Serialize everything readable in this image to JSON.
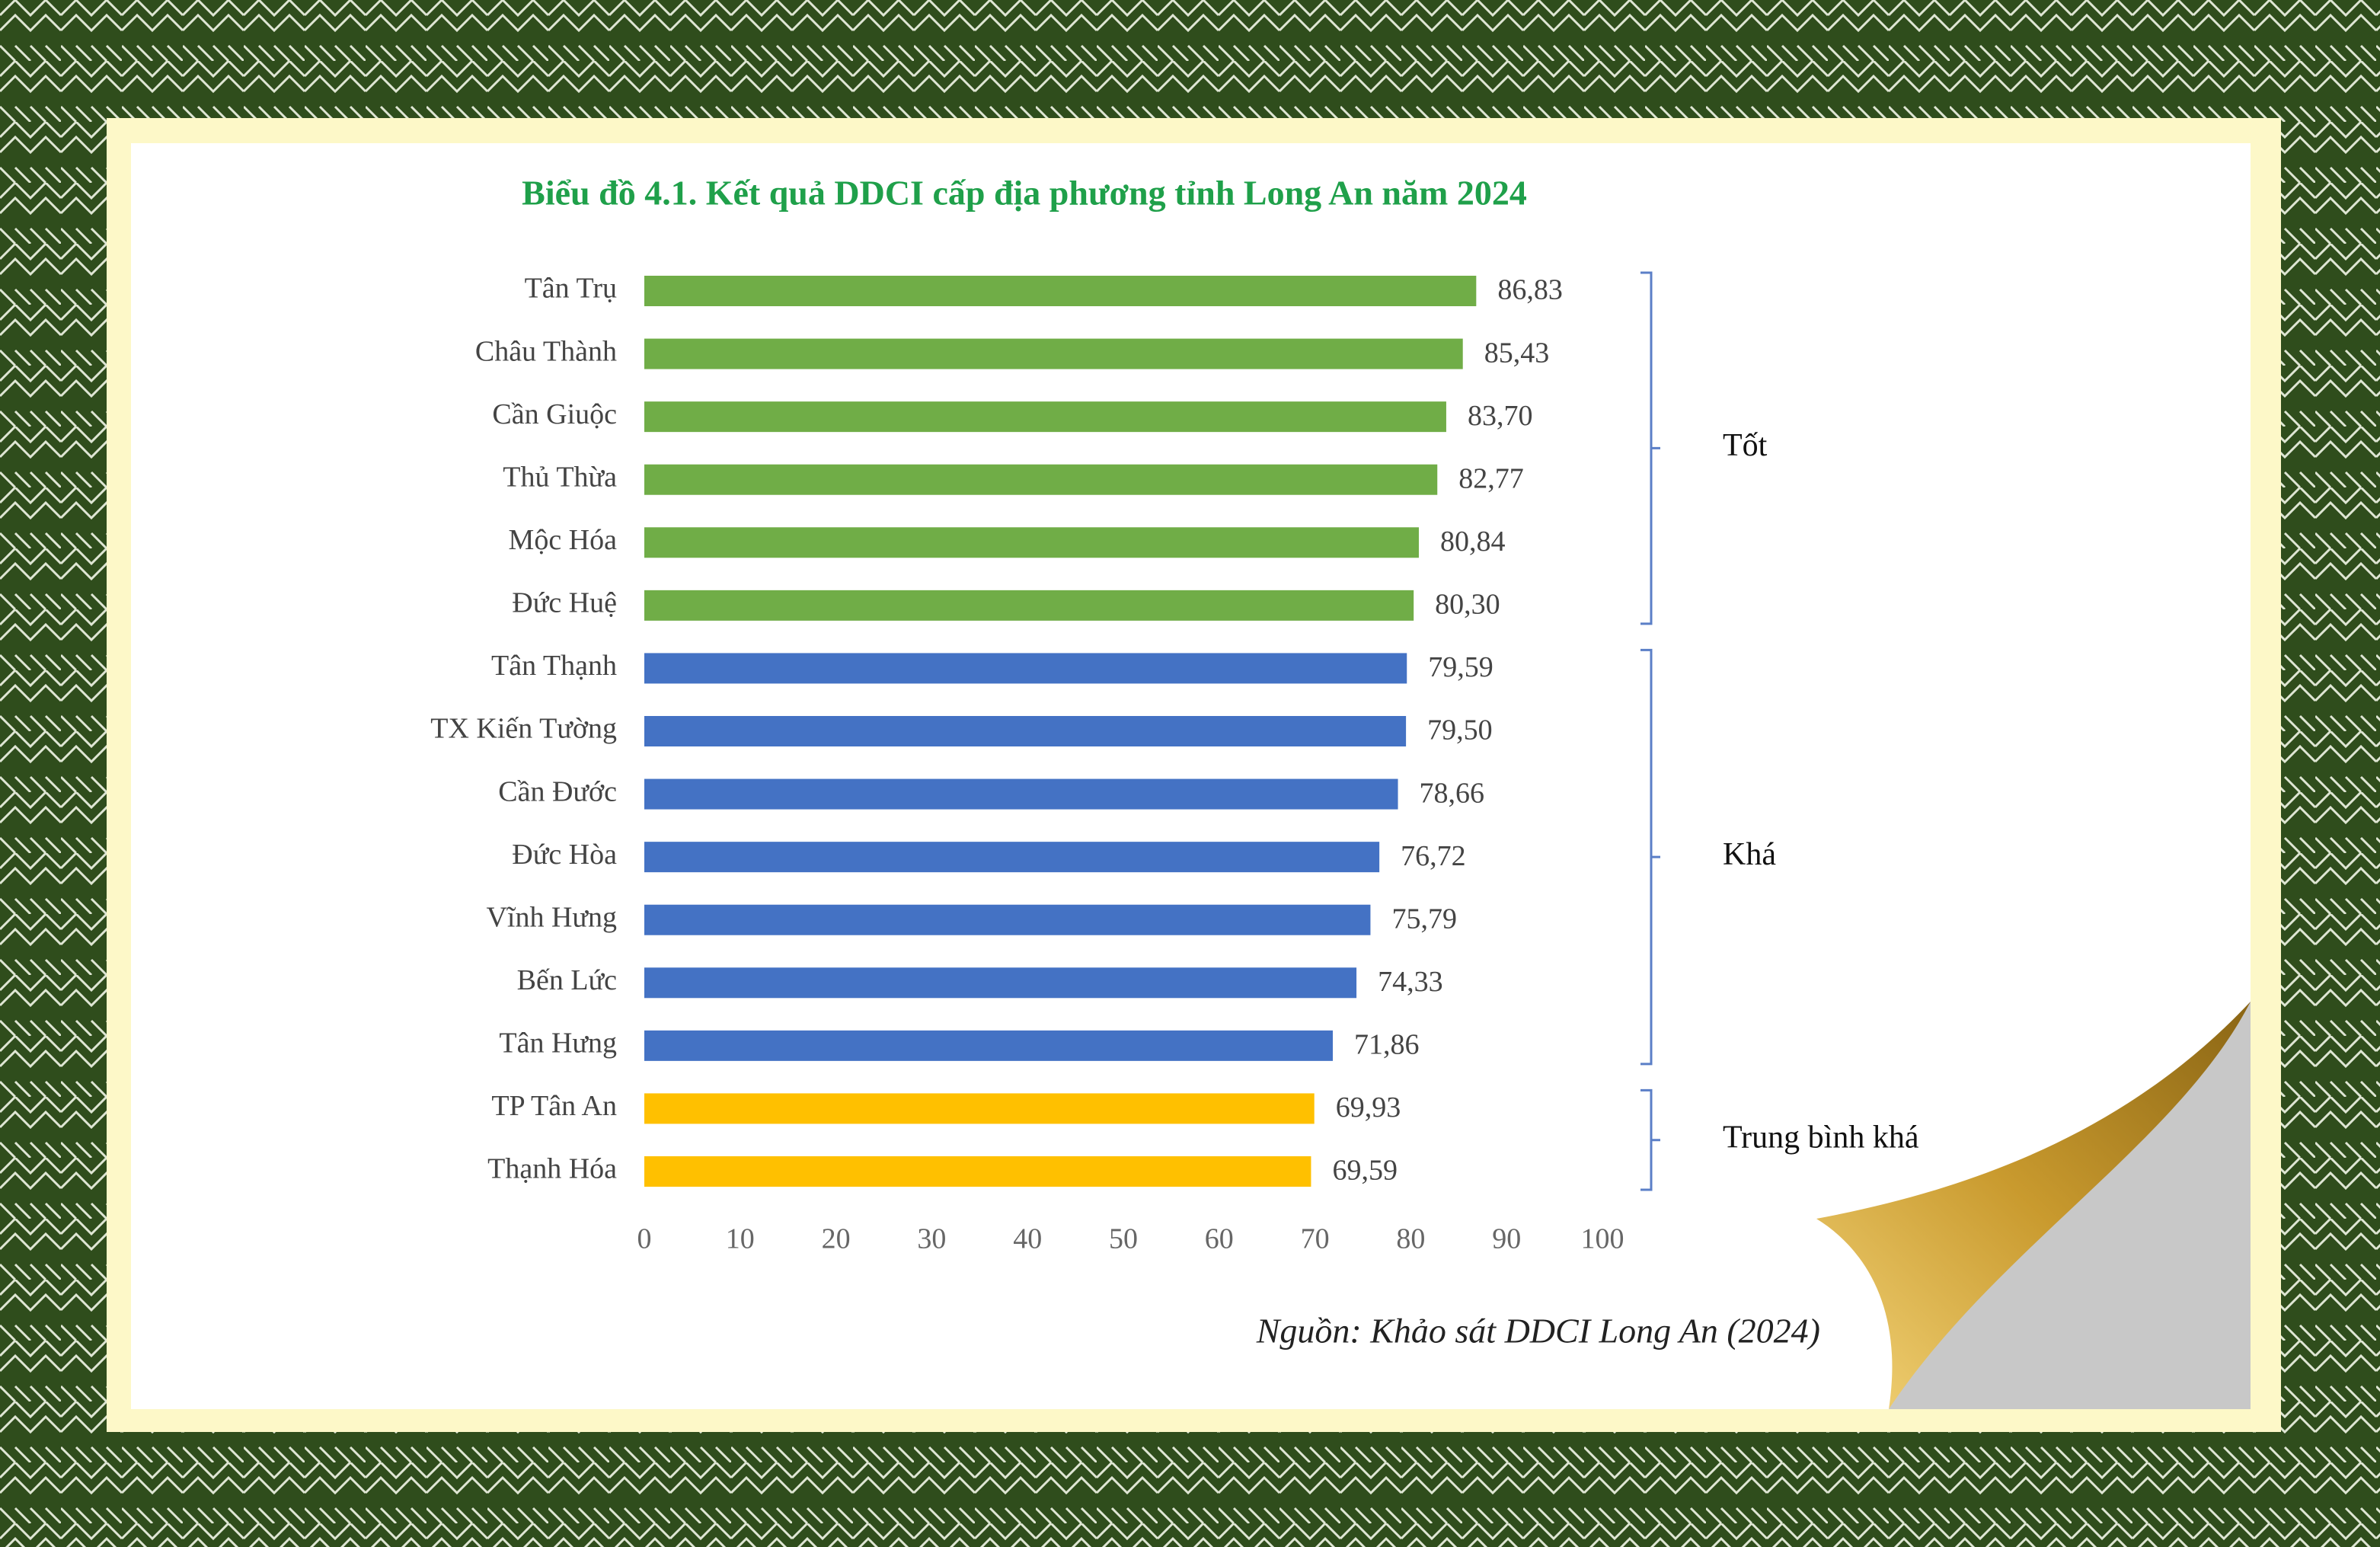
{
  "chart_data": {
    "type": "hbar",
    "title": "Biểu đồ 4.1. Kết quả DDCI cấp địa phương tỉnh Long An năm 2024",
    "source": "Nguồn: Khảo sát DDCI Long An (2024)",
    "categories": [
      "Tân Trụ",
      "Châu Thành",
      "Cần Giuộc",
      "Thủ Thừa",
      "Mộc Hóa",
      "Đức Huệ",
      "Tân Thạnh",
      "TX Kiến Tường",
      "Cần Đước",
      "Đức Hòa",
      "Vĩnh Hưng",
      "Bến Lức",
      "Tân Hưng",
      "TP Tân An",
      "Thạnh Hóa"
    ],
    "series": [
      {
        "name": "Tốt",
        "color": "#70ad47",
        "values": [
          86.83,
          85.43,
          83.7,
          82.77,
          80.84,
          80.3,
          null,
          null,
          null,
          null,
          null,
          null,
          null,
          null,
          null
        ],
        "value_labels": [
          "86,83",
          "85,43",
          "83,70",
          "82,77",
          "80,84",
          "80,30",
          null,
          null,
          null,
          null,
          null,
          null,
          null,
          null,
          null
        ]
      },
      {
        "name": "Khá",
        "color": "#4472c4",
        "values": [
          null,
          null,
          null,
          null,
          null,
          null,
          79.59,
          79.5,
          78.66,
          76.72,
          75.79,
          74.33,
          71.86,
          null,
          null
        ],
        "value_labels": [
          null,
          null,
          null,
          null,
          null,
          null,
          "79,59",
          "79,50",
          "78,66",
          "76,72",
          "75,79",
          "74,33",
          "71,86",
          null,
          null
        ]
      },
      {
        "name": "Trung bình khá",
        "color": "#ffc000",
        "values": [
          null,
          null,
          null,
          null,
          null,
          null,
          null,
          null,
          null,
          null,
          null,
          null,
          null,
          69.93,
          69.59
        ],
        "value_labels": [
          null,
          null,
          null,
          null,
          null,
          null,
          null,
          null,
          null,
          null,
          null,
          null,
          null,
          "69,93",
          "69,59"
        ]
      }
    ],
    "xlim": [
      0,
      100
    ],
    "xticks": [
      0,
      10,
      20,
      30,
      40,
      50,
      60,
      70,
      80,
      90,
      100
    ]
  }
}
